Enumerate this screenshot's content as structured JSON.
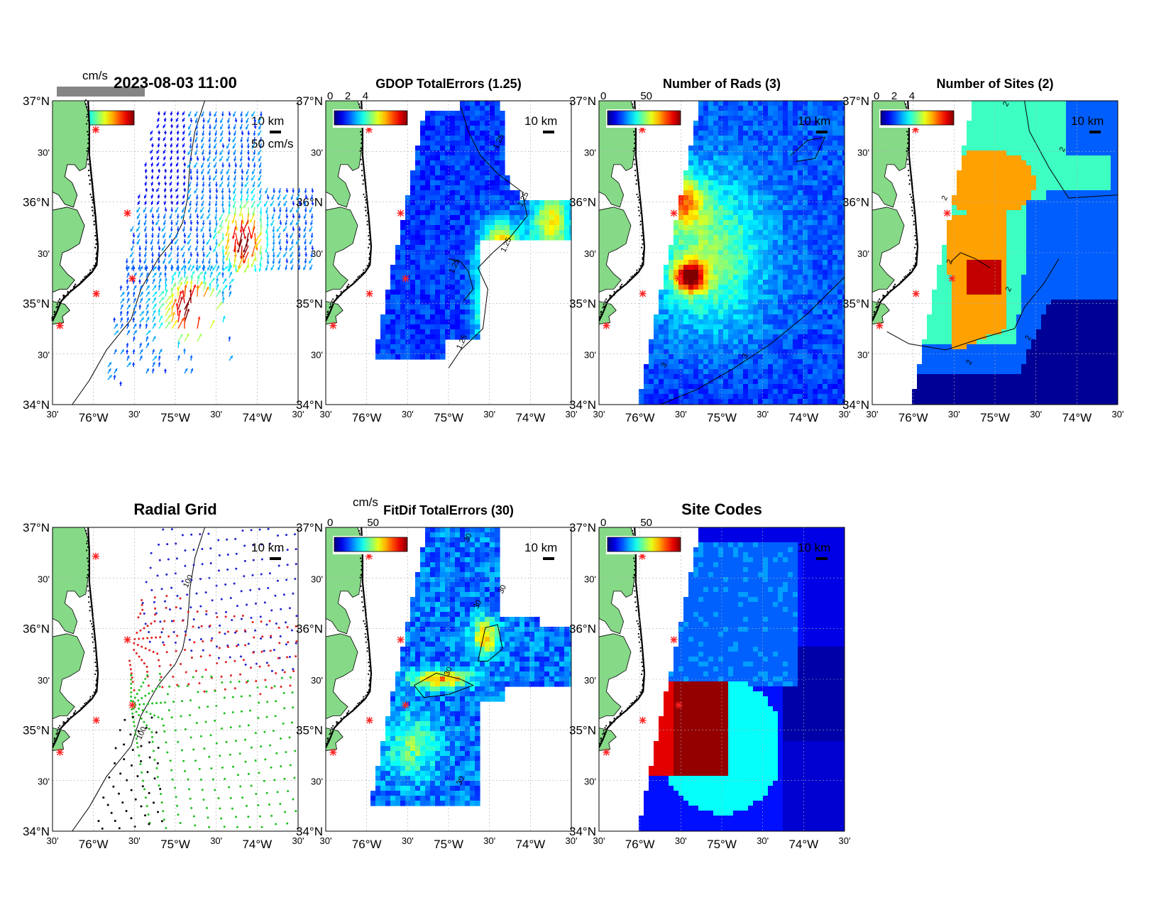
{
  "figure": {
    "lat_labels": [
      "37°N",
      "30'",
      "36°N",
      "30'",
      "35°N",
      "30'",
      "34°N"
    ],
    "lon_labels": [
      "30'",
      "76°W",
      "30'",
      "75°W",
      "30'",
      "74°W",
      "30'"
    ],
    "scale_bar_label": "10 km",
    "panels": [
      {
        "key": "p1",
        "title": "2023-08-03 11:00",
        "kind": "vectors",
        "colorbar": {
          "unit": "cm/s",
          "ticks": []
        },
        "vector_scale_label": "50 cm/s",
        "contours": []
      },
      {
        "key": "p2",
        "title": "GDOP TotalErrors (1.25)",
        "kind": "gdop",
        "colorbar": {
          "unit": "",
          "ticks": [
            "0",
            "2",
            "4"
          ]
        },
        "contours": [
          "1.25",
          "1.25",
          "1.25",
          "1.25",
          "1.25"
        ]
      },
      {
        "key": "p3",
        "title": "Number of Rads (3)",
        "kind": "rads",
        "colorbar": {
          "unit": "",
          "ticks": [
            "0",
            "50"
          ]
        },
        "contours": [
          "3",
          "3"
        ]
      },
      {
        "key": "p4",
        "title": "Number of Sites (2)",
        "kind": "sites",
        "colorbar": {
          "unit": "",
          "ticks": [
            "0",
            "2",
            "4"
          ]
        },
        "contours": [
          "2",
          "2",
          "2",
          "2",
          "2",
          "2",
          "2"
        ]
      },
      {
        "key": "p5",
        "title": "Radial Grid",
        "kind": "radial",
        "colorbar": null,
        "contours": [
          "100",
          "100"
        ]
      },
      {
        "key": "p6",
        "title": "FitDif TotalErrors (30)",
        "kind": "fitdif",
        "colorbar": {
          "unit": "cm/s",
          "ticks": [
            "0",
            "50"
          ]
        },
        "contours": [
          "30",
          "30",
          "30",
          "30",
          "30"
        ]
      },
      {
        "key": "p7",
        "title": "Site Codes",
        "kind": "codes",
        "colorbar": {
          "unit": "",
          "ticks": [
            "0",
            "50"
          ]
        },
        "contours": []
      }
    ],
    "colors": {
      "land": "#86d987",
      "coast": "#000000",
      "site_marker": "#ff2020",
      "radial_sites": [
        "#2222cc",
        "#e02020",
        "#20c020",
        "#000000"
      ]
    }
  }
}
